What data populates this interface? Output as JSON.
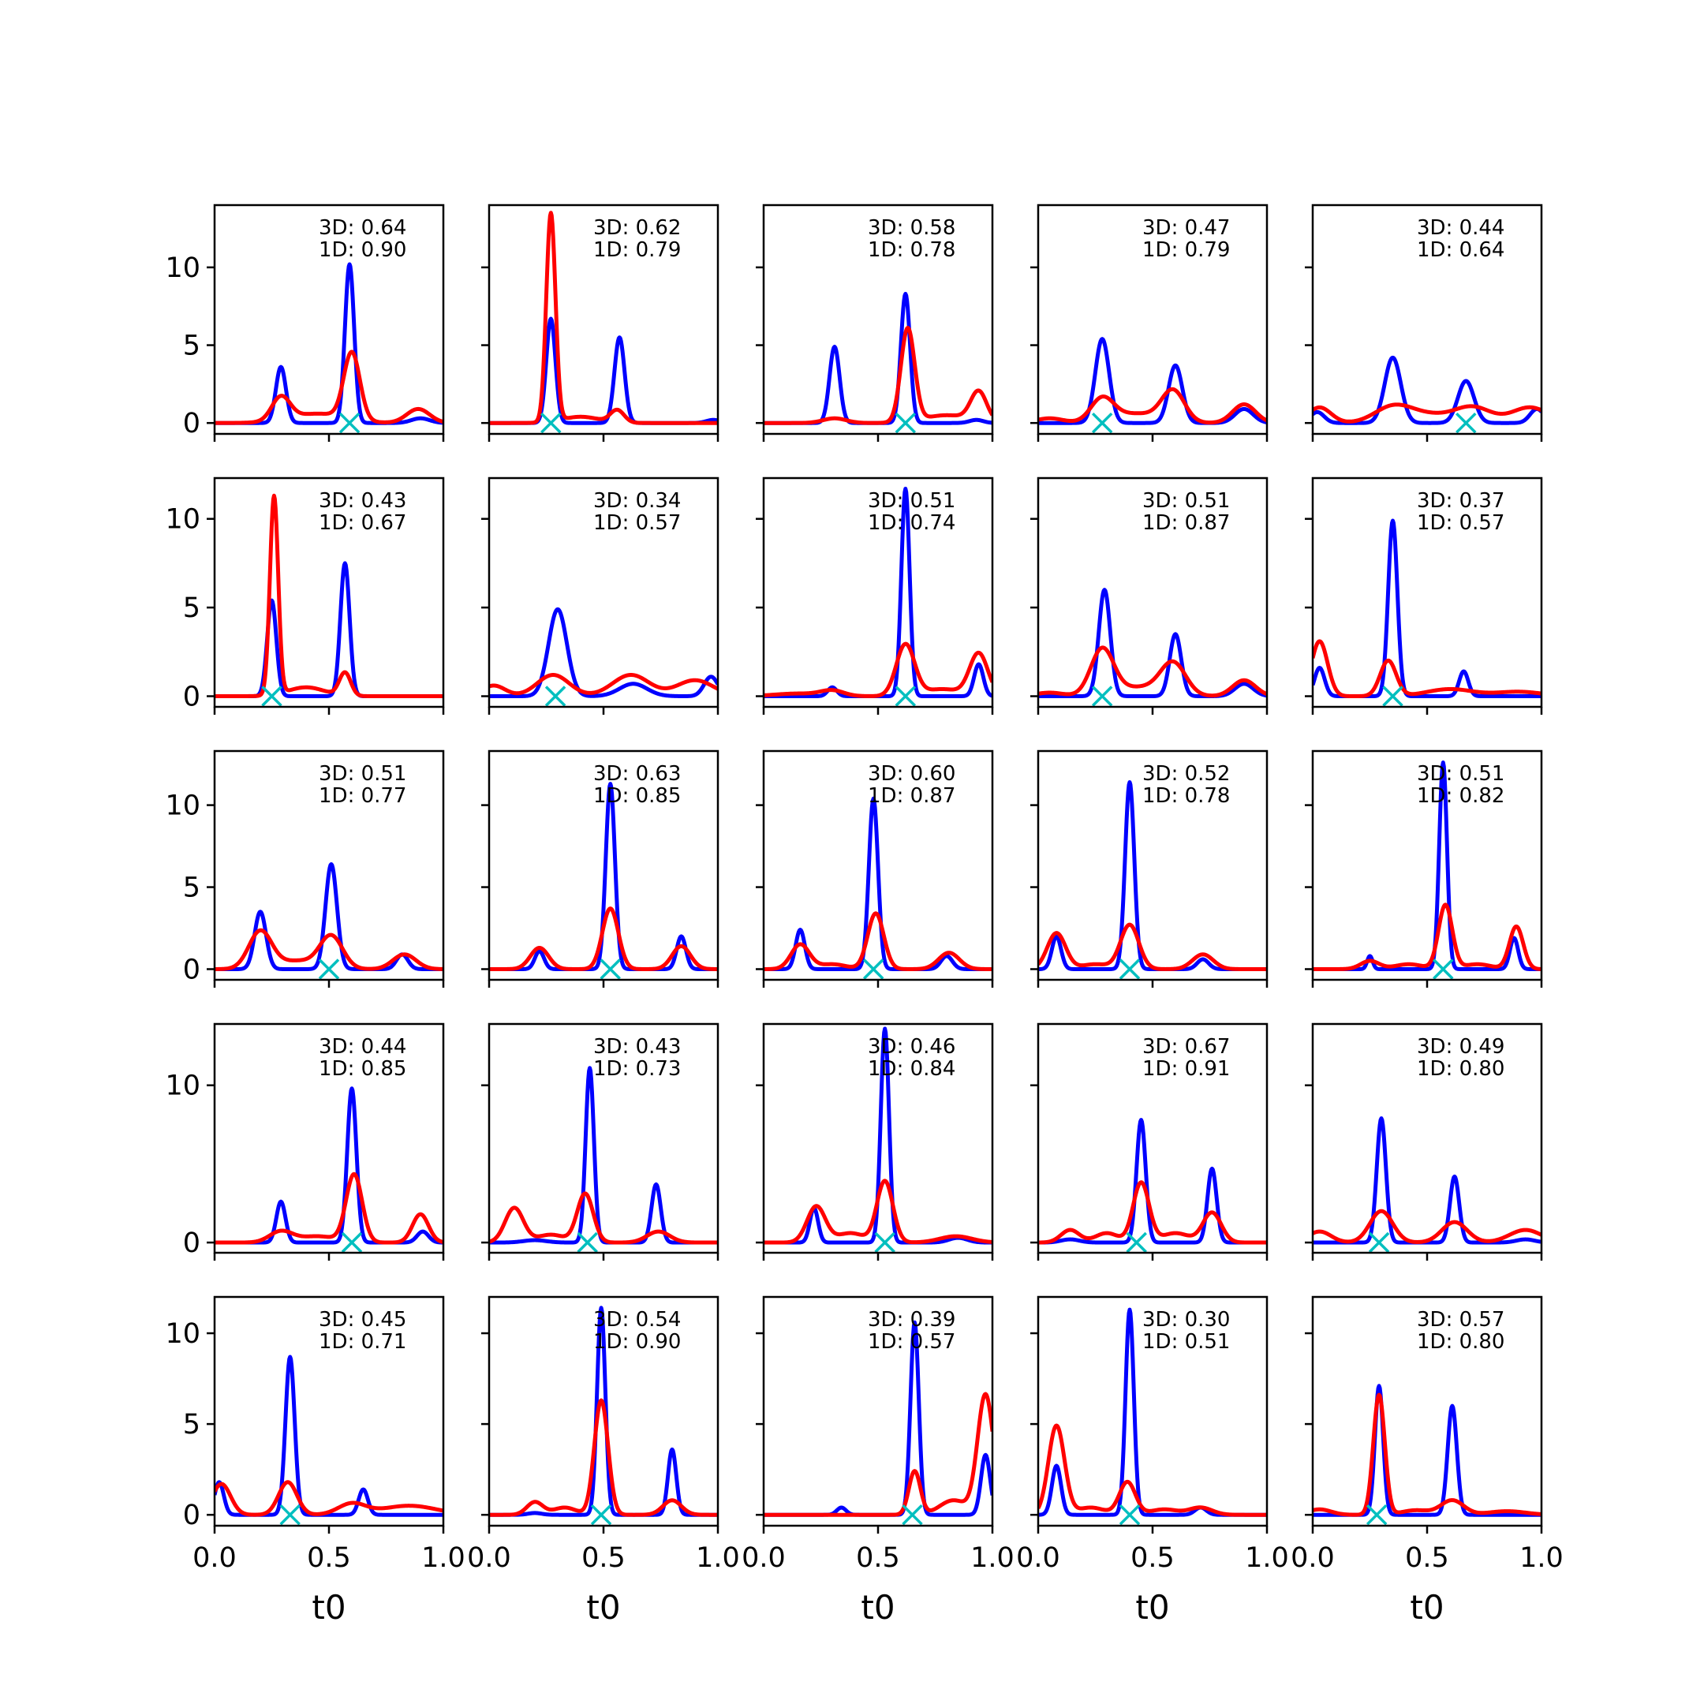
{
  "chart_data": {
    "type": "line",
    "grid": "5x5",
    "xlabel": "t0",
    "xlim": [
      0.0,
      1.0
    ],
    "x_ticks": [
      0.0,
      0.5,
      1.0
    ],
    "x_tick_labels": [
      "0.0",
      "0.5",
      "1.0"
    ],
    "grid_lines": false,
    "legend": "none",
    "colors": {
      "blue_series": "#0000ff",
      "red_series": "#ff0000",
      "marker": "#00bfbf"
    },
    "rows": [
      {
        "ylim": [
          -0.7,
          14.0
        ],
        "y_ticks": [
          0,
          5,
          10
        ],
        "y_tick_labels": [
          "0",
          "5",
          "10"
        ]
      },
      {
        "ylim": [
          -0.6,
          12.3
        ],
        "y_ticks": [
          0,
          5,
          10
        ],
        "y_tick_labels": [
          "0",
          "5",
          "10"
        ]
      },
      {
        "ylim": [
          -0.65,
          13.3
        ],
        "y_ticks": [
          0,
          5,
          10
        ],
        "y_tick_labels": [
          "0",
          "5",
          "10"
        ]
      },
      {
        "ylim": [
          -0.65,
          13.9
        ],
        "y_ticks": [
          0,
          10
        ],
        "y_tick_labels": [
          "0",
          "10"
        ]
      },
      {
        "ylim": [
          -0.6,
          12.0
        ],
        "y_ticks": [
          0,
          5,
          10
        ],
        "y_tick_labels": [
          "0",
          "5",
          "10"
        ]
      }
    ],
    "panels": [
      {
        "annotation": [
          "3D: 0.64",
          "1D: 0.90"
        ],
        "marker_x": 0.59,
        "blue_peaks": [
          [
            0.29,
            3.6,
            0.022
          ],
          [
            0.59,
            10.2,
            0.02
          ],
          [
            0.9,
            0.3,
            0.04
          ]
        ],
        "red_peaks": [
          [
            0.29,
            1.5,
            0.04
          ],
          [
            0.6,
            4.3,
            0.035
          ],
          [
            0.89,
            0.9,
            0.05
          ],
          [
            0.45,
            0.6,
            0.12
          ]
        ]
      },
      {
        "annotation": [
          "3D: 0.62",
          "1D: 0.79"
        ],
        "marker_x": 0.27,
        "blue_peaks": [
          [
            0.27,
            6.7,
            0.02
          ],
          [
            0.57,
            5.5,
            0.022
          ],
          [
            0.98,
            0.2,
            0.03
          ]
        ],
        "red_peaks": [
          [
            0.27,
            13.4,
            0.02
          ],
          [
            0.56,
            0.8,
            0.03
          ],
          [
            0.4,
            0.4,
            0.08
          ]
        ]
      },
      {
        "annotation": [
          "3D: 0.58",
          "1D: 0.78"
        ],
        "marker_x": 0.62,
        "blue_peaks": [
          [
            0.31,
            4.9,
            0.022
          ],
          [
            0.62,
            8.3,
            0.02
          ],
          [
            0.93,
            0.2,
            0.03
          ]
        ],
        "red_peaks": [
          [
            0.31,
            0.3,
            0.05
          ],
          [
            0.63,
            6.0,
            0.03
          ],
          [
            0.94,
            1.9,
            0.035
          ],
          [
            0.8,
            0.5,
            0.1
          ]
        ]
      },
      {
        "annotation": [
          "3D: 0.47",
          "1D: 0.79"
        ],
        "marker_x": 0.28,
        "blue_peaks": [
          [
            0.28,
            5.4,
            0.03
          ],
          [
            0.6,
            3.7,
            0.03
          ],
          [
            0.9,
            0.9,
            0.04
          ]
        ],
        "red_peaks": [
          [
            0.28,
            1.5,
            0.05
          ],
          [
            0.59,
            2.0,
            0.05
          ],
          [
            0.9,
            1.2,
            0.05
          ],
          [
            0.43,
            0.6,
            0.1
          ],
          [
            0.05,
            0.3,
            0.06
          ]
        ]
      },
      {
        "annotation": [
          "3D: 0.44",
          "1D: 0.64"
        ],
        "marker_x": 0.67,
        "blue_peaks": [
          [
            0.35,
            4.2,
            0.035
          ],
          [
            0.67,
            2.7,
            0.035
          ],
          [
            0.02,
            0.7,
            0.03
          ],
          [
            0.98,
            0.9,
            0.03
          ]
        ],
        "red_peaks": [
          [
            0.03,
            1.0,
            0.05
          ],
          [
            0.35,
            1.0,
            0.08
          ],
          [
            0.7,
            1.0,
            0.08
          ],
          [
            0.95,
            1.0,
            0.08
          ],
          [
            0.5,
            0.5,
            0.1
          ]
        ]
      },
      {
        "annotation": [
          "3D: 0.43",
          "1D: 0.67"
        ],
        "marker_x": 0.25,
        "blue_peaks": [
          [
            0.25,
            5.4,
            0.02
          ],
          [
            0.57,
            7.5,
            0.02
          ]
        ],
        "red_peaks": [
          [
            0.26,
            11.2,
            0.018
          ],
          [
            0.57,
            1.3,
            0.025
          ],
          [
            0.4,
            0.5,
            0.08
          ]
        ]
      },
      {
        "annotation": [
          "3D: 0.34",
          "1D: 0.57"
        ],
        "marker_x": 0.29,
        "blue_peaks": [
          [
            0.3,
            4.9,
            0.04
          ],
          [
            0.63,
            0.7,
            0.06
          ],
          [
            0.97,
            1.1,
            0.03
          ]
        ],
        "red_peaks": [
          [
            0.02,
            0.6,
            0.05
          ],
          [
            0.28,
            1.2,
            0.07
          ],
          [
            0.62,
            1.2,
            0.08
          ],
          [
            0.9,
            0.9,
            0.08
          ]
        ]
      },
      {
        "annotation": [
          "3D: 0.51",
          "1D: 0.74"
        ],
        "marker_x": 0.62,
        "blue_peaks": [
          [
            0.3,
            0.5,
            0.02
          ],
          [
            0.62,
            11.7,
            0.018
          ],
          [
            0.94,
            1.8,
            0.02
          ]
        ],
        "red_peaks": [
          [
            0.62,
            2.9,
            0.04
          ],
          [
            0.94,
            2.4,
            0.04
          ],
          [
            0.3,
            0.3,
            0.05
          ],
          [
            0.78,
            0.4,
            0.08
          ],
          [
            0.15,
            0.15,
            0.1
          ]
        ]
      },
      {
        "annotation": [
          "3D: 0.51",
          "1D: 0.87"
        ],
        "marker_x": 0.28,
        "blue_peaks": [
          [
            0.29,
            6.0,
            0.025
          ],
          [
            0.6,
            3.5,
            0.025
          ],
          [
            0.9,
            0.7,
            0.04
          ]
        ],
        "red_peaks": [
          [
            0.28,
            2.6,
            0.05
          ],
          [
            0.59,
            1.8,
            0.055
          ],
          [
            0.9,
            0.9,
            0.05
          ],
          [
            0.05,
            0.2,
            0.06
          ],
          [
            0.44,
            0.5,
            0.1
          ]
        ]
      },
      {
        "annotation": [
          "3D: 0.37",
          "1D: 0.57"
        ],
        "marker_x": 0.35,
        "blue_peaks": [
          [
            0.35,
            9.9,
            0.02
          ],
          [
            0.66,
            1.4,
            0.02
          ],
          [
            0.03,
            1.6,
            0.022
          ]
        ],
        "red_peaks": [
          [
            0.03,
            3.1,
            0.035
          ],
          [
            0.33,
            2.0,
            0.035
          ],
          [
            0.6,
            0.4,
            0.1
          ],
          [
            0.9,
            0.25,
            0.1
          ]
        ]
      },
      {
        "annotation": [
          "3D: 0.51",
          "1D: 0.77"
        ],
        "marker_x": 0.5,
        "blue_peaks": [
          [
            0.2,
            3.5,
            0.025
          ],
          [
            0.51,
            6.4,
            0.025
          ],
          [
            0.82,
            0.9,
            0.025
          ]
        ],
        "red_peaks": [
          [
            0.2,
            2.3,
            0.05
          ],
          [
            0.51,
            2.0,
            0.05
          ],
          [
            0.83,
            0.9,
            0.05
          ],
          [
            0.36,
            0.5,
            0.08
          ]
        ]
      },
      {
        "annotation": [
          "3D: 0.63",
          "1D: 0.85"
        ],
        "marker_x": 0.53,
        "blue_peaks": [
          [
            0.22,
            1.1,
            0.02
          ],
          [
            0.53,
            11.3,
            0.02
          ],
          [
            0.84,
            2.0,
            0.02
          ]
        ],
        "red_peaks": [
          [
            0.22,
            1.3,
            0.04
          ],
          [
            0.53,
            3.7,
            0.035
          ],
          [
            0.84,
            1.4,
            0.04
          ]
        ]
      },
      {
        "annotation": [
          "3D: 0.60",
          "1D: 0.87"
        ],
        "marker_x": 0.48,
        "blue_peaks": [
          [
            0.16,
            2.4,
            0.02
          ],
          [
            0.48,
            10.4,
            0.02
          ],
          [
            0.8,
            0.8,
            0.025
          ]
        ],
        "red_peaks": [
          [
            0.16,
            1.5,
            0.04
          ],
          [
            0.49,
            3.4,
            0.035
          ],
          [
            0.81,
            1.0,
            0.045
          ],
          [
            0.3,
            0.3,
            0.06
          ]
        ]
      },
      {
        "annotation": [
          "3D: 0.52",
          "1D: 0.78"
        ],
        "marker_x": 0.4,
        "blue_peaks": [
          [
            0.08,
            2.0,
            0.02
          ],
          [
            0.4,
            11.4,
            0.02
          ],
          [
            0.72,
            0.6,
            0.025
          ]
        ],
        "red_peaks": [
          [
            0.08,
            2.2,
            0.04
          ],
          [
            0.4,
            2.7,
            0.04
          ],
          [
            0.72,
            0.9,
            0.045
          ],
          [
            0.25,
            0.3,
            0.06
          ]
        ]
      },
      {
        "annotation": [
          "3D: 0.51",
          "1D: 0.82"
        ],
        "marker_x": 0.57,
        "blue_peaks": [
          [
            0.25,
            0.8,
            0.012
          ],
          [
            0.57,
            12.6,
            0.017
          ],
          [
            0.88,
            1.9,
            0.018
          ]
        ],
        "red_peaks": [
          [
            0.25,
            0.5,
            0.04
          ],
          [
            0.58,
            3.9,
            0.03
          ],
          [
            0.89,
            2.6,
            0.03
          ],
          [
            0.42,
            0.3,
            0.06
          ],
          [
            0.72,
            0.3,
            0.06
          ]
        ]
      },
      {
        "annotation": [
          "3D: 0.44",
          "1D: 0.85"
        ],
        "marker_x": 0.6,
        "blue_peaks": [
          [
            0.29,
            2.6,
            0.02
          ],
          [
            0.6,
            9.8,
            0.02
          ],
          [
            0.91,
            0.7,
            0.025
          ]
        ],
        "red_peaks": [
          [
            0.29,
            0.7,
            0.05
          ],
          [
            0.61,
            4.3,
            0.035
          ],
          [
            0.9,
            1.8,
            0.035
          ],
          [
            0.45,
            0.4,
            0.08
          ]
        ]
      },
      {
        "annotation": [
          "3D: 0.43",
          "1D: 0.73"
        ],
        "marker_x": 0.43,
        "blue_peaks": [
          [
            0.44,
            11.1,
            0.018
          ],
          [
            0.73,
            3.7,
            0.02
          ],
          [
            0.2,
            0.15,
            0.05
          ]
        ],
        "red_peaks": [
          [
            0.11,
            2.2,
            0.04
          ],
          [
            0.42,
            3.1,
            0.035
          ],
          [
            0.74,
            0.7,
            0.05
          ],
          [
            0.27,
            0.5,
            0.06
          ]
        ]
      },
      {
        "annotation": [
          "3D: 0.46",
          "1D: 0.84"
        ],
        "marker_x": 0.53,
        "blue_peaks": [
          [
            0.22,
            2.2,
            0.018
          ],
          [
            0.53,
            13.6,
            0.018
          ],
          [
            0.85,
            0.3,
            0.04
          ]
        ],
        "red_peaks": [
          [
            0.23,
            2.3,
            0.04
          ],
          [
            0.53,
            3.9,
            0.035
          ],
          [
            0.84,
            0.4,
            0.07
          ],
          [
            0.38,
            0.6,
            0.06
          ]
        ]
      },
      {
        "annotation": [
          "3D: 0.67",
          "1D: 0.91"
        ],
        "marker_x": 0.43,
        "blue_peaks": [
          [
            0.45,
            7.8,
            0.02
          ],
          [
            0.76,
            4.7,
            0.02
          ],
          [
            0.14,
            0.2,
            0.04
          ]
        ],
        "red_peaks": [
          [
            0.14,
            0.8,
            0.04
          ],
          [
            0.45,
            3.8,
            0.035
          ],
          [
            0.76,
            1.9,
            0.04
          ],
          [
            0.3,
            0.6,
            0.05
          ],
          [
            0.6,
            0.6,
            0.06
          ]
        ]
      },
      {
        "annotation": [
          "3D: 0.49",
          "1D: 0.80"
        ],
        "marker_x": 0.29,
        "blue_peaks": [
          [
            0.3,
            7.9,
            0.02
          ],
          [
            0.62,
            4.2,
            0.02
          ],
          [
            0.93,
            0.2,
            0.04
          ]
        ],
        "red_peaks": [
          [
            0.3,
            2.0,
            0.05
          ],
          [
            0.62,
            1.3,
            0.055
          ],
          [
            0.03,
            0.7,
            0.05
          ],
          [
            0.93,
            0.8,
            0.07
          ]
        ]
      },
      {
        "annotation": [
          "3D: 0.45",
          "1D: 0.71"
        ],
        "marker_x": 0.33,
        "blue_peaks": [
          [
            0.33,
            8.7,
            0.02
          ],
          [
            0.65,
            1.4,
            0.02
          ],
          [
            0.02,
            1.8,
            0.02
          ]
        ],
        "red_peaks": [
          [
            0.03,
            1.7,
            0.04
          ],
          [
            0.32,
            1.8,
            0.04
          ],
          [
            0.6,
            0.6,
            0.06
          ],
          [
            0.85,
            0.5,
            0.12
          ]
        ]
      },
      {
        "annotation": [
          "3D: 0.54",
          "1D: 0.90"
        ],
        "marker_x": 0.49,
        "blue_peaks": [
          [
            0.49,
            11.4,
            0.018
          ],
          [
            0.8,
            3.6,
            0.018
          ],
          [
            0.2,
            0.1,
            0.03
          ]
        ],
        "red_peaks": [
          [
            0.2,
            0.7,
            0.035
          ],
          [
            0.49,
            6.3,
            0.03
          ],
          [
            0.8,
            0.8,
            0.04
          ],
          [
            0.33,
            0.4,
            0.05
          ]
        ]
      },
      {
        "annotation": [
          "3D: 0.39",
          "1D: 0.57"
        ],
        "marker_x": 0.65,
        "blue_peaks": [
          [
            0.34,
            0.4,
            0.02
          ],
          [
            0.66,
            10.6,
            0.018
          ],
          [
            0.97,
            3.3,
            0.02
          ]
        ],
        "red_peaks": [
          [
            0.66,
            2.4,
            0.025
          ],
          [
            0.97,
            6.6,
            0.035
          ],
          [
            0.83,
            0.8,
            0.06
          ]
        ]
      },
      {
        "annotation": [
          "3D: 0.30",
          "1D: 0.51"
        ],
        "marker_x": 0.4,
        "blue_peaks": [
          [
            0.08,
            2.7,
            0.02
          ],
          [
            0.4,
            11.3,
            0.018
          ],
          [
            0.71,
            0.4,
            0.025
          ]
        ],
        "red_peaks": [
          [
            0.08,
            4.9,
            0.035
          ],
          [
            0.39,
            1.8,
            0.035
          ],
          [
            0.71,
            0.4,
            0.05
          ],
          [
            0.23,
            0.4,
            0.06
          ],
          [
            0.55,
            0.3,
            0.06
          ]
        ]
      },
      {
        "annotation": [
          "3D: 0.57",
          "1D: 0.80"
        ],
        "marker_x": 0.28,
        "blue_peaks": [
          [
            0.29,
            7.1,
            0.018
          ],
          [
            0.61,
            6.0,
            0.02
          ]
        ],
        "red_peaks": [
          [
            0.29,
            6.6,
            0.025
          ],
          [
            0.61,
            0.8,
            0.05
          ],
          [
            0.03,
            0.3,
            0.05
          ],
          [
            0.45,
            0.25,
            0.06
          ],
          [
            0.85,
            0.2,
            0.08
          ]
        ]
      }
    ]
  }
}
